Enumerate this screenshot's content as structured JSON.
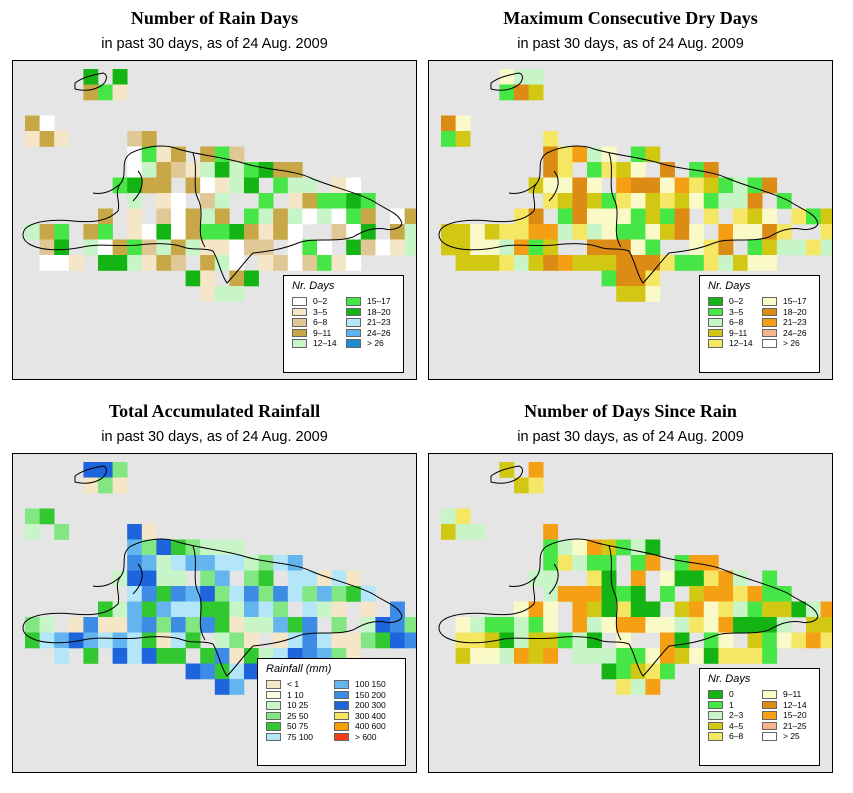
{
  "panels": [
    {
      "title": "Number of Rain Days",
      "subtitle": "in past 30 days, as of  24 Aug. 2009",
      "legend_title": "Nr. Days",
      "legend": [
        {
          "label": "0–2",
          "color": "#ffffff"
        },
        {
          "label": "3–5",
          "color": "#f5e6c8"
        },
        {
          "label": "6–8",
          "color": "#e0c896"
        },
        {
          "label": "9–11",
          "color": "#c8a846"
        },
        {
          "label": "12–14",
          "color": "#c8f5c8"
        },
        {
          "label": "15–17",
          "color": "#46e646"
        },
        {
          "label": "18–20",
          "color": "#14b414"
        },
        {
          "label": "21–23",
          "color": "#b4e6f5"
        },
        {
          "label": "24–26",
          "color": "#5ab4f0"
        },
        {
          "label": "> 26",
          "color": "#1e8cd2"
        }
      ]
    },
    {
      "title": "Maximum Consecutive Dry Days",
      "subtitle": "in past 30 days, as of  24 Aug. 2009",
      "legend_title": "Nr. Days",
      "legend": [
        {
          "label": "0–2",
          "color": "#14b414"
        },
        {
          "label": "3–5",
          "color": "#46e646"
        },
        {
          "label": "6–8",
          "color": "#c8f5c8"
        },
        {
          "label": "9–11",
          "color": "#d2c814"
        },
        {
          "label": "12–14",
          "color": "#f5e664"
        },
        {
          "label": "15–17",
          "color": "#fafac8"
        },
        {
          "label": "18–20",
          "color": "#dc8c14"
        },
        {
          "label": "21–23",
          "color": "#f5a014"
        },
        {
          "label": "24–26",
          "color": "#f5b48c"
        },
        {
          "label": "> 26",
          "color": "#ffffff"
        }
      ]
    },
    {
      "title": "Total Accumulated Rainfall",
      "subtitle": "in past 30 days, as of  24 Aug. 2009",
      "legend_title": "Rainfall (mm)",
      "legend": [
        {
          "label": "< 1",
          "color": "#f5e6c8"
        },
        {
          "label": "1    10",
          "color": "#fafae6"
        },
        {
          "label": "10   25",
          "color": "#c8f5c8"
        },
        {
          "label": "25   50",
          "color": "#82e682"
        },
        {
          "label": "50   75",
          "color": "#32c832"
        },
        {
          "label": "75  100",
          "color": "#b4e6fa"
        },
        {
          "label": "100  150",
          "color": "#64b4f0"
        },
        {
          "label": "150  200",
          "color": "#3c8ce6"
        },
        {
          "label": "200  300",
          "color": "#1e64dc"
        },
        {
          "label": "300  400",
          "color": "#f5e664"
        },
        {
          "label": "400  600",
          "color": "#f5a000"
        },
        {
          "label": "> 600",
          "color": "#f53c14"
        }
      ]
    },
    {
      "title": "Number of Days Since Rain",
      "subtitle": "in past 30 days, as of  24 Aug. 2009",
      "legend_title": "Nr. Days",
      "legend": [
        {
          "label": "0",
          "color": "#14b414"
        },
        {
          "label": "1",
          "color": "#46e646"
        },
        {
          "label": "2–3",
          "color": "#c8f5c8"
        },
        {
          "label": "4–5",
          "color": "#d2c814"
        },
        {
          "label": "6–8",
          "color": "#f5e664"
        },
        {
          "label": "9–11",
          "color": "#fafac8"
        },
        {
          "label": "12–14",
          "color": "#dc8c14"
        },
        {
          "label": "15–20",
          "color": "#f5a014"
        },
        {
          "label": "21–25",
          "color": "#f5b48c"
        },
        {
          "label": "> 25",
          "color": "#ffffff"
        }
      ]
    }
  ]
}
